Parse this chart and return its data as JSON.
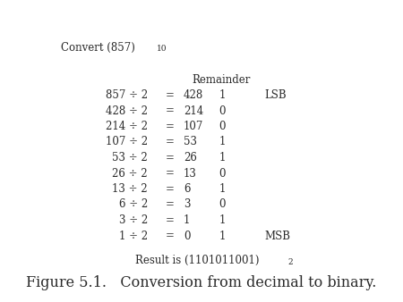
{
  "title_main": "Convert (857)",
  "title_sub": "10",
  "remainder_label": "Remainder",
  "rows": [
    {
      "expr": "857 ÷ 2",
      "eq": "=",
      "quotient": "428",
      "remainder": "1",
      "label": "LSB"
    },
    {
      "expr": "428 ÷ 2",
      "eq": "=",
      "quotient": "214",
      "remainder": "0",
      "label": ""
    },
    {
      "expr": "214 ÷ 2",
      "eq": "=",
      "quotient": "107",
      "remainder": "0",
      "label": ""
    },
    {
      "expr": "107 ÷ 2",
      "eq": "=",
      "quotient": "53",
      "remainder": "1",
      "label": ""
    },
    {
      "expr": "53 ÷ 2",
      "eq": "=",
      "quotient": "26",
      "remainder": "1",
      "label": ""
    },
    {
      "expr": "26 ÷ 2",
      "eq": "=",
      "quotient": "13",
      "remainder": "0",
      "label": ""
    },
    {
      "expr": "13 ÷ 2",
      "eq": "=",
      "quotient": "6",
      "remainder": "1",
      "label": ""
    },
    {
      "expr": "6 ÷ 2",
      "eq": "=",
      "quotient": "3",
      "remainder": "0",
      "label": ""
    },
    {
      "expr": "3 ÷ 2",
      "eq": "=",
      "quotient": "1",
      "remainder": "1",
      "label": ""
    },
    {
      "expr": "1 ÷ 2",
      "eq": "=",
      "quotient": "0",
      "remainder": "1",
      "label": "MSB"
    }
  ],
  "result_text": "Result is (1101011001)",
  "result_sub": "2",
  "figure_caption": "Figure 5.1.   Conversion from decimal to binary.",
  "bg_color": "#ffffff",
  "text_color": "#2a2a2a",
  "font_size": 8.5,
  "sub_font_size": 6.5,
  "caption_font_size": 11.5
}
